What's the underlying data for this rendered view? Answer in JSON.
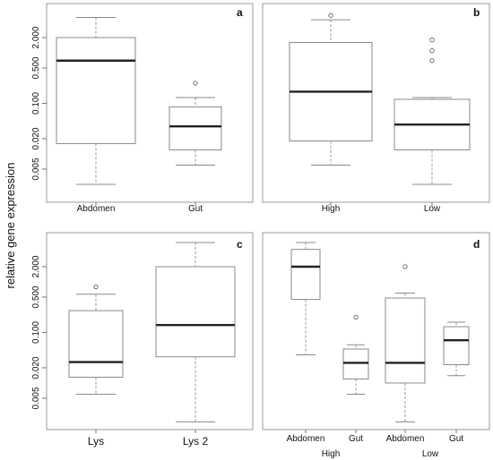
{
  "figure": {
    "ylabel": "relative gene expression"
  },
  "chart_data": [
    {
      "type": "box",
      "panel": "a",
      "yscale": "log",
      "ytick_labels": [
        "2.000",
        "0.500",
        "0.100",
        "0.020",
        "0.005"
      ],
      "ytick_values": [
        2.0,
        0.5,
        0.1,
        0.02,
        0.005
      ],
      "categories": [
        "Abdomen",
        "Gut"
      ],
      "boxes": [
        {
          "whislo": 0.0025,
          "q1": 0.016,
          "med": 0.7,
          "q3": 2.0,
          "whishi": 5.0,
          "fliers": []
        },
        {
          "whislo": 0.006,
          "q1": 0.012,
          "med": 0.035,
          "q3": 0.085,
          "whishi": 0.13,
          "fliers": [
            0.25
          ]
        }
      ]
    },
    {
      "type": "box",
      "panel": "b",
      "yscale": "log",
      "ytick_labels": [],
      "ytick_values": [
        2.0,
        0.5,
        0.1,
        0.02,
        0.005
      ],
      "categories": [
        "High",
        "Low"
      ],
      "boxes": [
        {
          "whislo": 0.006,
          "q1": 0.018,
          "med": 0.17,
          "q3": 1.6,
          "whishi": 4.5,
          "fliers": [
            5.5
          ]
        },
        {
          "whislo": 0.0025,
          "q1": 0.012,
          "med": 0.038,
          "q3": 0.12,
          "whishi": 0.13,
          "fliers": [
            0.7,
            1.1,
            1.8
          ]
        }
      ]
    },
    {
      "type": "box",
      "panel": "c",
      "yscale": "log",
      "ytick_labels": [
        "2.000",
        "0.500",
        "0.100",
        "0.020",
        "0.005"
      ],
      "ytick_values": [
        2.0,
        0.5,
        0.1,
        0.02,
        0.005
      ],
      "categories": [
        "Lys",
        "Lys 2"
      ],
      "boxes": [
        {
          "whislo": 0.006,
          "q1": 0.013,
          "med": 0.026,
          "q3": 0.27,
          "whishi": 0.57,
          "fliers": [
            0.8
          ]
        },
        {
          "whislo": 0.0017,
          "q1": 0.033,
          "med": 0.14,
          "q3": 2.0,
          "whishi": 6.0,
          "fliers": []
        }
      ]
    },
    {
      "type": "box",
      "panel": "d",
      "yscale": "log",
      "ytick_labels": [],
      "ytick_values": [
        2.0,
        0.5,
        0.1,
        0.02,
        0.005
      ],
      "categories": [
        "Abdomen",
        "Gut",
        "Abdomen",
        "Gut"
      ],
      "groups": [
        "High",
        "Low"
      ],
      "boxes": [
        {
          "whislo": 0.036,
          "q1": 0.45,
          "med": 2.0,
          "q3": 4.4,
          "whishi": 6.0,
          "fliers": []
        },
        {
          "whislo": 0.006,
          "q1": 0.012,
          "med": 0.025,
          "q3": 0.047,
          "whishi": 0.057,
          "fliers": [
            0.2
          ]
        },
        {
          "whislo": 0.0017,
          "q1": 0.01,
          "med": 0.025,
          "q3": 0.48,
          "whishi": 0.6,
          "fliers": [
            2.0
          ]
        },
        {
          "whislo": 0.014,
          "q1": 0.023,
          "med": 0.07,
          "q3": 0.13,
          "whishi": 0.16,
          "fliers": []
        }
      ]
    }
  ]
}
